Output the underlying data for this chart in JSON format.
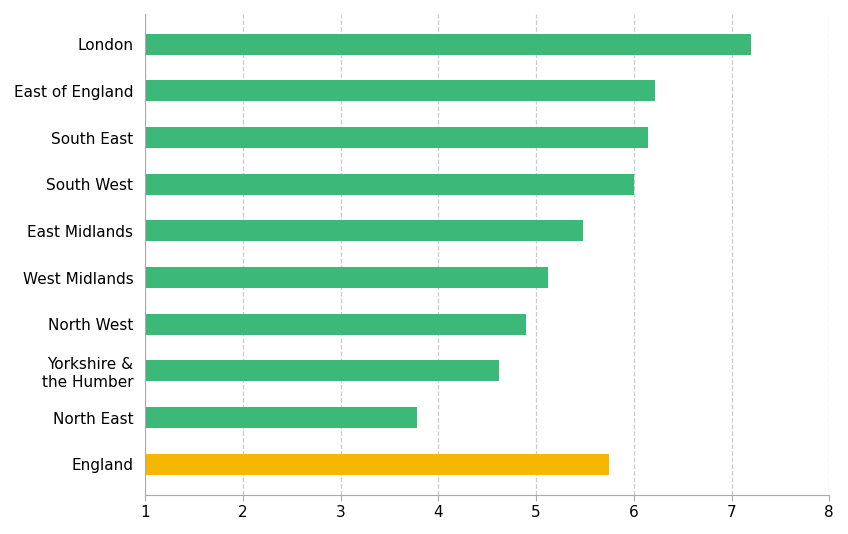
{
  "categories": [
    "England",
    "North East",
    "Yorkshire &\nthe Humber",
    "North West",
    "West Midlands",
    "East Midlands",
    "South West",
    "South East",
    "East of England",
    "London"
  ],
  "values": [
    5.75,
    3.78,
    4.62,
    4.9,
    5.12,
    5.48,
    6.0,
    6.15,
    6.22,
    7.2
  ],
  "bar_colors": [
    "#F5B800",
    "#3CB879",
    "#3CB879",
    "#3CB879",
    "#3CB879",
    "#3CB879",
    "#3CB879",
    "#3CB879",
    "#3CB879",
    "#3CB879"
  ],
  "xlim": [
    1,
    8
  ],
  "xticks": [
    1,
    2,
    3,
    4,
    5,
    6,
    7,
    8
  ],
  "grid_color": "#CCCCCC",
  "bar_height": 0.45,
  "background_color": "#FFFFFF",
  "label_fontsize": 11,
  "tick_fontsize": 11
}
